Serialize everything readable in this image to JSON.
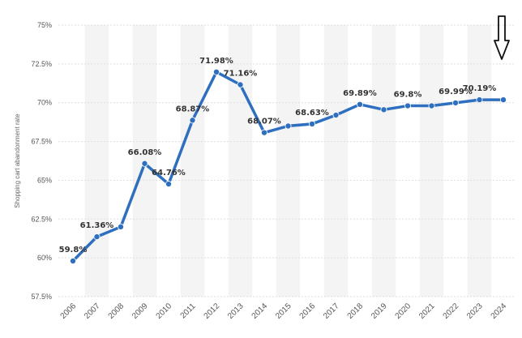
{
  "chart_data": {
    "type": "line",
    "ylabel": "Shopping cart abandonment rate",
    "xlabel": "",
    "ylim": [
      57.5,
      75
    ],
    "yticks": [
      "75%",
      "72.5%",
      "70%",
      "67.5%",
      "65%",
      "62.5%",
      "60%",
      "57.5%"
    ],
    "ytick_values": [
      75,
      72.5,
      70,
      67.5,
      65,
      62.5,
      60,
      57.5
    ],
    "grid": "horizontal",
    "series_color": "#2f6fbf",
    "categories": [
      "2006",
      "2007",
      "2008",
      "2009",
      "2010",
      "2011",
      "2012",
      "2013",
      "2014",
      "2015",
      "2016",
      "2017",
      "2018",
      "2019",
      "2020",
      "2021",
      "2022",
      "2023",
      "2024"
    ],
    "values": [
      59.8,
      61.36,
      62.0,
      66.08,
      64.76,
      68.87,
      71.98,
      71.16,
      68.07,
      68.5,
      68.63,
      69.2,
      69.89,
      69.55,
      69.8,
      69.8,
      69.99,
      70.19,
      70.19
    ],
    "data_labels": [
      "59.8%",
      "61.36%",
      "",
      "66.08%",
      "64.76%",
      "68.87%",
      "71.98%",
      "71.16%",
      "68.07%",
      "",
      "68.63%",
      "",
      "69.89%",
      "",
      "69.8%",
      "",
      "69.99%",
      "70.19%",
      ""
    ]
  },
  "annotation": {
    "name": "down-arrow",
    "points_to": "2024"
  }
}
